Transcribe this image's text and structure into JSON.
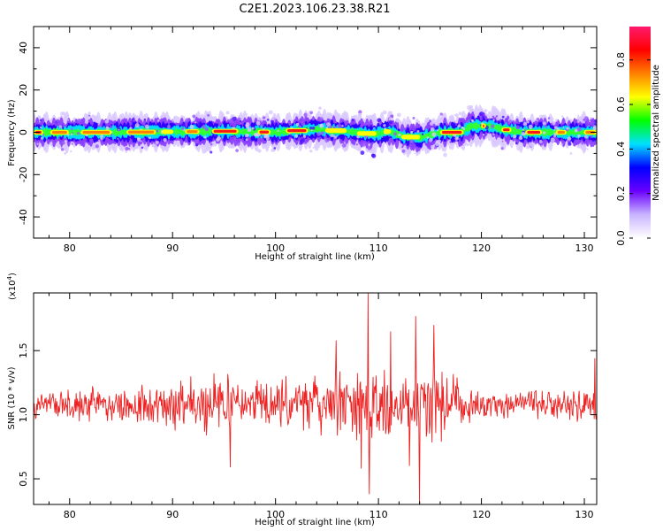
{
  "title": "C2E1.2023.106.23.38.R21",
  "chart_data": [
    {
      "type": "heatmap",
      "xlabel": "Height of straight line (km)",
      "ylabel": "Frequency (Hz)",
      "xlim": [
        76.5,
        131.2
      ],
      "ylim": [
        -50,
        50
      ],
      "xticks": [
        "80",
        "90",
        "100",
        "110",
        "120",
        "130"
      ],
      "yticks": [
        "-40",
        "-20",
        "0",
        "20",
        "40"
      ],
      "xtick_values": [
        80,
        90,
        100,
        110,
        120,
        130
      ],
      "ytick_values": [
        -40,
        -20,
        0,
        20,
        40
      ],
      "colorbar": {
        "label": "Normalized spectral amplitude",
        "ticks": [
          "0.0",
          "0.2",
          "0.4",
          "0.6",
          "0.8"
        ],
        "tick_values": [
          0.0,
          0.2,
          0.4,
          0.6,
          0.8
        ],
        "range": [
          0,
          0.95
        ],
        "colors": [
          "#ffffff",
          "#c8b4ff",
          "#6a00ff",
          "#0000ff",
          "#00e0ff",
          "#00ff00",
          "#ffff00",
          "#ff8000",
          "#ff0000",
          "#ff1a6e"
        ]
      },
      "center_line": {
        "x": [
          76.5,
          85,
          95,
          100,
          104,
          108,
          109.5,
          111,
          112.5,
          114,
          116,
          118,
          119,
          121,
          122,
          124,
          128,
          131.2
        ],
        "y": [
          0,
          0,
          0.5,
          0,
          1.5,
          0,
          -1,
          0.5,
          -2,
          -2.5,
          0,
          0,
          3,
          3,
          1.5,
          0,
          0,
          0
        ]
      }
    },
    {
      "type": "line",
      "xlabel": "Height of straight line (km)",
      "ylabel": "SNR (10 * v/v)",
      "multiplier": "(x10",
      "multiplier_exp": "4",
      "multiplier_close": ")",
      "xlim": [
        76.5,
        131.2
      ],
      "ylim": [
        0.3,
        1.95
      ],
      "xticks": [
        "80",
        "90",
        "100",
        "110",
        "120",
        "130"
      ],
      "yticks": [
        "0.5",
        "1.0",
        "1.5"
      ],
      "xtick_values": [
        80,
        90,
        100,
        110,
        120,
        130
      ],
      "ytick_values": [
        0.5,
        1.0,
        1.5
      ],
      "series": [
        {
          "color": "#ee2222",
          "baseline": 1.08,
          "envelope_x": [
            76.5,
            80,
            85,
            88,
            90,
            95,
            98,
            100,
            104,
            106,
            108,
            109,
            110,
            112,
            114,
            116,
            118,
            120,
            124,
            128,
            131.2
          ],
          "envelope_amp": [
            0.14,
            0.16,
            0.17,
            0.2,
            0.22,
            0.26,
            0.24,
            0.22,
            0.27,
            0.3,
            0.32,
            0.38,
            0.3,
            0.32,
            0.38,
            0.3,
            0.22,
            0.14,
            0.12,
            0.13,
            0.16
          ],
          "peaks": [
            {
              "x": 109.0,
              "y": 1.95
            },
            {
              "x": 109.1,
              "y": 0.38
            },
            {
              "x": 113.6,
              "y": 1.77
            },
            {
              "x": 114.0,
              "y": 0.3
            },
            {
              "x": 115.4,
              "y": 1.7
            },
            {
              "x": 105.9,
              "y": 1.58
            },
            {
              "x": 111.2,
              "y": 1.65
            },
            {
              "x": 108.3,
              "y": 0.58
            },
            {
              "x": 113.0,
              "y": 0.6
            },
            {
              "x": 95.6,
              "y": 0.59
            },
            {
              "x": 131.0,
              "y": 1.44
            }
          ]
        }
      ]
    }
  ]
}
